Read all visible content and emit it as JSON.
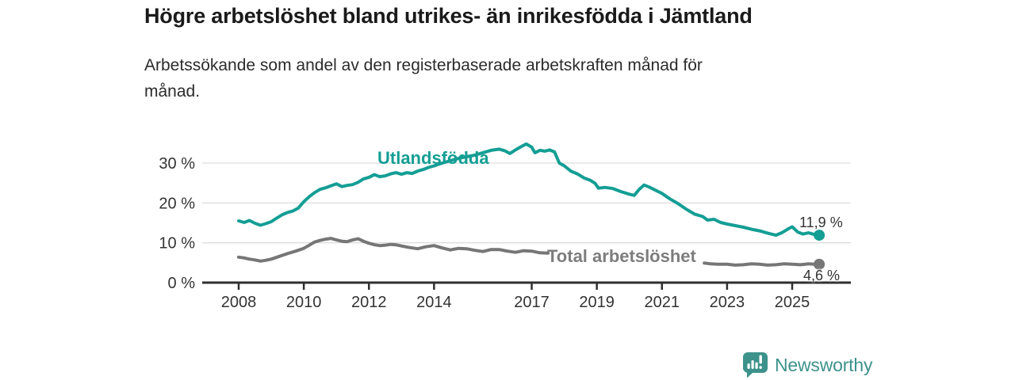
{
  "page": {
    "title": "Högre arbetslöshet bland utrikes- än inrikesfödda i Jämtland",
    "subtitle_line1": "Arbetssökande som andel av den registerbaserade arbetskraften månad för",
    "subtitle_line2": "månad."
  },
  "footer": {
    "brand": "Newsworthy",
    "logo_icon": "bar-chart-speech-bubble-icon"
  },
  "colors": {
    "accent_teal": "#149e94",
    "series_gray": "#767676",
    "label_gray": "#7d7d7d",
    "logo_teal": "#3d928b",
    "axis": "#2f2f2f",
    "grid": "#dddddd",
    "tick_text": "#333333"
  },
  "chart_data": {
    "type": "line",
    "title": "Högre arbetslöshet bland utrikes- än inrikesfödda i Jämtland",
    "subtitle": "Arbetssökande som andel av den registerbaserade arbetskraften månad för månad.",
    "unit": "%",
    "grid": "horizontal",
    "legend_position": "inline-labels",
    "x_axis": {
      "range": [
        2006.9,
        2026.8
      ],
      "ticks": [
        2008,
        2010,
        2012,
        2014,
        2017,
        2019,
        2021,
        2023,
        2025
      ]
    },
    "y_axis": {
      "range": [
        0,
        35.2
      ],
      "ticks": [
        0,
        10,
        20,
        30
      ],
      "tick_labels": [
        "0 %",
        "10 %",
        "20 %",
        "30 %"
      ]
    },
    "series": [
      {
        "name": "Utlandsfödda",
        "color_key": "accent_teal",
        "end_label": "11,9 %",
        "end_value": 11.9,
        "segments": [
          [
            [
              2008.0,
              15.5
            ],
            [
              2008.17,
              15.1
            ],
            [
              2008.33,
              15.6
            ],
            [
              2008.5,
              14.9
            ],
            [
              2008.67,
              14.4
            ],
            [
              2008.83,
              14.8
            ],
            [
              2009.0,
              15.3
            ],
            [
              2009.17,
              16.2
            ],
            [
              2009.33,
              17.0
            ],
            [
              2009.5,
              17.6
            ],
            [
              2009.67,
              18.0
            ],
            [
              2009.83,
              18.7
            ],
            [
              2010.0,
              20.3
            ],
            [
              2010.17,
              21.6
            ],
            [
              2010.33,
              22.6
            ],
            [
              2010.5,
              23.4
            ],
            [
              2010.67,
              23.8
            ],
            [
              2010.83,
              24.3
            ],
            [
              2011.0,
              24.8
            ],
            [
              2011.17,
              24.1
            ],
            [
              2011.33,
              24.4
            ],
            [
              2011.5,
              24.6
            ],
            [
              2011.67,
              25.2
            ],
            [
              2011.83,
              26.0
            ],
            [
              2012.0,
              26.4
            ],
            [
              2012.17,
              27.1
            ],
            [
              2012.33,
              26.6
            ],
            [
              2012.5,
              26.8
            ],
            [
              2012.67,
              27.3
            ],
            [
              2012.83,
              27.6
            ],
            [
              2013.0,
              27.2
            ],
            [
              2013.17,
              27.6
            ],
            [
              2013.33,
              27.4
            ],
            [
              2013.5,
              28.0
            ],
            [
              2013.67,
              28.4
            ],
            [
              2013.83,
              28.9
            ],
            [
              2014.0,
              29.3
            ],
            [
              2014.25,
              30.0
            ],
            [
              2014.5,
              30.6
            ],
            [
              2014.75,
              31.2
            ],
            [
              2015.0,
              31.6
            ],
            [
              2015.25,
              32.0
            ],
            [
              2015.5,
              32.6
            ],
            [
              2015.75,
              33.2
            ],
            [
              2016.0,
              33.5
            ],
            [
              2016.17,
              33.1
            ],
            [
              2016.33,
              32.4
            ],
            [
              2016.5,
              33.3
            ],
            [
              2016.67,
              34.1
            ],
            [
              2016.83,
              34.8
            ],
            [
              2017.0,
              34.0
            ],
            [
              2017.1,
              32.6
            ],
            [
              2017.25,
              33.2
            ],
            [
              2017.4,
              33.0
            ],
            [
              2017.55,
              33.3
            ],
            [
              2017.7,
              32.8
            ],
            [
              2017.85,
              30.0
            ],
            [
              2018.0,
              29.3
            ],
            [
              2018.2,
              28.0
            ],
            [
              2018.4,
              27.3
            ],
            [
              2018.6,
              26.3
            ],
            [
              2018.8,
              25.7
            ],
            [
              2018.95,
              24.9
            ],
            [
              2019.05,
              23.7
            ],
            [
              2019.25,
              23.9
            ],
            [
              2019.5,
              23.6
            ],
            [
              2019.75,
              22.8
            ],
            [
              2020.0,
              22.2
            ],
            [
              2020.15,
              21.9
            ],
            [
              2020.3,
              23.4
            ],
            [
              2020.45,
              24.5
            ],
            [
              2020.6,
              24.0
            ],
            [
              2020.75,
              23.4
            ],
            [
              2021.0,
              22.4
            ],
            [
              2021.25,
              21.0
            ],
            [
              2021.5,
              19.8
            ],
            [
              2021.75,
              18.4
            ],
            [
              2022.0,
              17.2
            ],
            [
              2022.25,
              16.6
            ],
            [
              2022.4,
              15.7
            ],
            [
              2022.6,
              15.9
            ],
            [
              2022.8,
              15.1
            ],
            [
              2023.0,
              14.7
            ],
            [
              2023.25,
              14.3
            ],
            [
              2023.5,
              13.9
            ],
            [
              2023.75,
              13.4
            ],
            [
              2024.0,
              13.0
            ],
            [
              2024.25,
              12.4
            ],
            [
              2024.5,
              11.9
            ],
            [
              2024.7,
              12.6
            ],
            [
              2024.9,
              13.6
            ],
            [
              2025.0,
              14.0
            ],
            [
              2025.17,
              12.7
            ],
            [
              2025.33,
              12.2
            ],
            [
              2025.5,
              12.5
            ],
            [
              2025.67,
              12.1
            ],
            [
              2025.83,
              11.9
            ]
          ]
        ]
      },
      {
        "name": "Total arbetslöshet",
        "color_key": "series_gray",
        "end_label": "4,6 %",
        "end_value": 4.6,
        "segments": [
          [
            [
              2008.0,
              6.4
            ],
            [
              2008.17,
              6.2
            ],
            [
              2008.33,
              5.9
            ],
            [
              2008.5,
              5.7
            ],
            [
              2008.67,
              5.4
            ],
            [
              2008.83,
              5.6
            ],
            [
              2009.0,
              5.9
            ],
            [
              2009.25,
              6.6
            ],
            [
              2009.5,
              7.3
            ],
            [
              2009.75,
              7.9
            ],
            [
              2010.0,
              8.6
            ],
            [
              2010.17,
              9.4
            ],
            [
              2010.33,
              10.2
            ],
            [
              2010.5,
              10.6
            ],
            [
              2010.67,
              10.9
            ],
            [
              2010.83,
              11.1
            ],
            [
              2011.0,
              10.7
            ],
            [
              2011.17,
              10.4
            ],
            [
              2011.33,
              10.3
            ],
            [
              2011.5,
              10.7
            ],
            [
              2011.67,
              11.0
            ],
            [
              2011.83,
              10.4
            ],
            [
              2012.0,
              9.9
            ],
            [
              2012.17,
              9.5
            ],
            [
              2012.33,
              9.3
            ],
            [
              2012.5,
              9.4
            ],
            [
              2012.67,
              9.6
            ],
            [
              2012.83,
              9.5
            ],
            [
              2013.0,
              9.2
            ],
            [
              2013.25,
              8.8
            ],
            [
              2013.5,
              8.5
            ],
            [
              2013.75,
              9.0
            ],
            [
              2014.0,
              9.3
            ],
            [
              2014.25,
              8.7
            ],
            [
              2014.5,
              8.2
            ],
            [
              2014.75,
              8.6
            ],
            [
              2015.0,
              8.5
            ],
            [
              2015.25,
              8.1
            ],
            [
              2015.5,
              7.8
            ],
            [
              2015.75,
              8.3
            ],
            [
              2016.0,
              8.3
            ],
            [
              2016.25,
              7.9
            ],
            [
              2016.5,
              7.6
            ],
            [
              2016.75,
              8.0
            ],
            [
              2017.0,
              7.9
            ],
            [
              2017.25,
              7.5
            ],
            [
              2017.5,
              7.4
            ]
          ],
          [
            [
              2022.3,
              4.9
            ],
            [
              2022.5,
              4.7
            ],
            [
              2022.7,
              4.6
            ],
            [
              2023.0,
              4.6
            ],
            [
              2023.25,
              4.4
            ],
            [
              2023.5,
              4.5
            ],
            [
              2023.75,
              4.7
            ],
            [
              2024.0,
              4.6
            ],
            [
              2024.25,
              4.4
            ],
            [
              2024.5,
              4.5
            ],
            [
              2024.75,
              4.7
            ],
            [
              2025.0,
              4.6
            ],
            [
              2025.25,
              4.5
            ],
            [
              2025.5,
              4.7
            ],
            [
              2025.67,
              4.6
            ],
            [
              2025.83,
              4.6
            ]
          ]
        ]
      }
    ]
  }
}
